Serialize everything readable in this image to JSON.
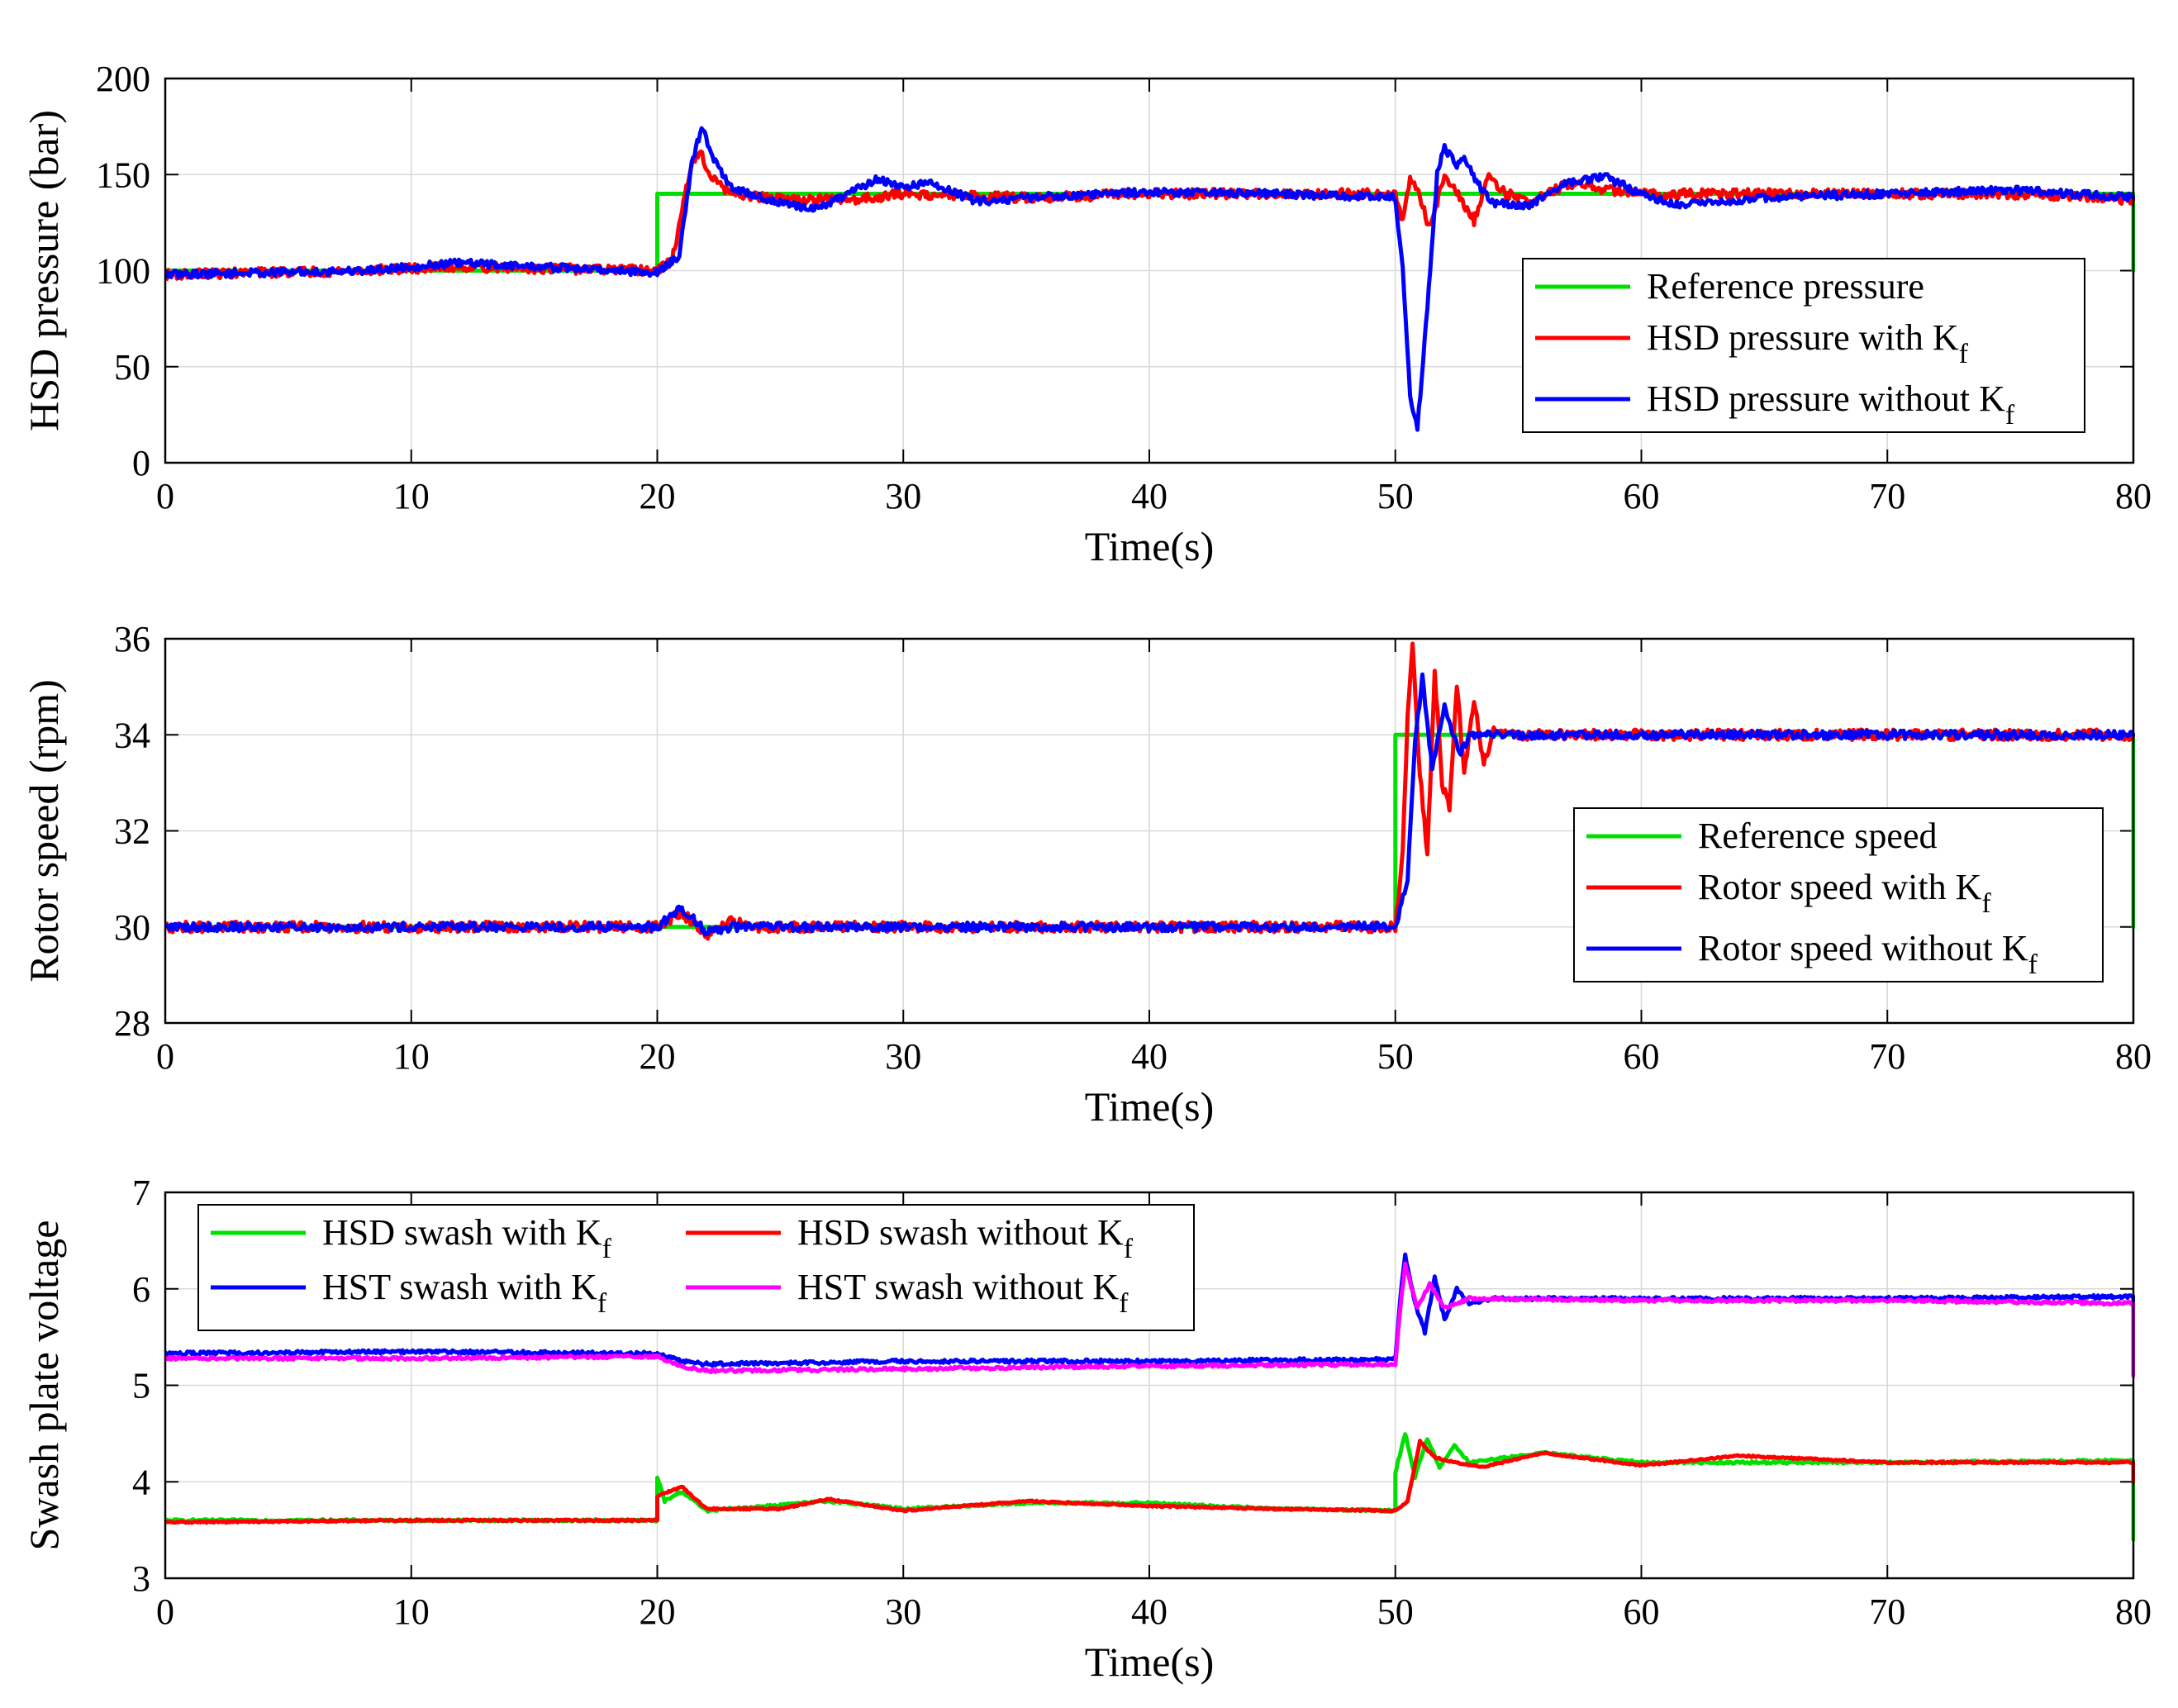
{
  "chart_data": [
    {
      "type": "line",
      "id": "pressure",
      "title": "",
      "xlabel": "Time(s)",
      "ylabel": "HSD pressure (bar)",
      "xlim": [
        0,
        80
      ],
      "ylim": [
        0,
        200
      ],
      "xticks": [
        "0",
        "10",
        "20",
        "30",
        "40",
        "50",
        "60",
        "70",
        "80"
      ],
      "yticks": [
        "0",
        "50",
        "100",
        "150",
        "200"
      ],
      "grid": true,
      "legend_position": "right",
      "series": [
        {
          "name": "Reference pressure",
          "base": "",
          "sub": "",
          "color": "#00e000",
          "noise": 0,
          "points": [
            [
              0,
              100
            ],
            [
              20,
              100
            ],
            [
              20,
              140
            ],
            [
              80,
              140
            ],
            [
              80,
              100
            ]
          ]
        },
        {
          "name": "HSD pressure with K",
          "base": "HSD pressure with K",
          "sub": "f",
          "color": "#ff0000",
          "noise": 2.5,
          "points": [
            [
              0,
              98
            ],
            [
              8,
              100
            ],
            [
              12,
              102
            ],
            [
              20,
              100
            ],
            [
              20.6,
              105
            ],
            [
              21.3,
              150
            ],
            [
              21.7,
              163
            ],
            [
              22.2,
              148
            ],
            [
              23,
              140
            ],
            [
              25,
              137
            ],
            [
              28,
              137
            ],
            [
              30,
              140
            ],
            [
              35,
              138
            ],
            [
              40,
              140
            ],
            [
              45,
              140
            ],
            [
              50,
              140
            ],
            [
              50.3,
              125
            ],
            [
              50.6,
              148
            ],
            [
              51,
              138
            ],
            [
              51.4,
              122
            ],
            [
              52,
              150
            ],
            [
              52.5,
              140
            ],
            [
              53.2,
              126
            ],
            [
              53.8,
              150
            ],
            [
              54.5,
              140
            ],
            [
              55.5,
              136
            ],
            [
              57,
              145
            ],
            [
              60,
              140
            ],
            [
              65,
              140
            ],
            [
              70,
              140
            ],
            [
              75,
              140
            ],
            [
              80,
              137
            ]
          ]
        },
        {
          "name": "HSD pressure without K",
          "base": "HSD pressure without K",
          "sub": "f",
          "color": "#0000ff",
          "noise": 2.0,
          "points": [
            [
              0,
              98
            ],
            [
              8,
              100
            ],
            [
              12,
              104
            ],
            [
              20,
              99
            ],
            [
              20.9,
              108
            ],
            [
              21.4,
              155
            ],
            [
              21.8,
              175
            ],
            [
              22.3,
              158
            ],
            [
              23,
              143
            ],
            [
              25,
              135
            ],
            [
              26.5,
              132
            ],
            [
              29,
              148
            ],
            [
              30,
              143
            ],
            [
              31,
              146
            ],
            [
              33,
              136
            ],
            [
              35,
              138
            ],
            [
              38,
              140
            ],
            [
              40,
              141
            ],
            [
              45,
              140
            ],
            [
              50,
              138
            ],
            [
              50.3,
              100
            ],
            [
              50.6,
              35
            ],
            [
              50.9,
              18
            ],
            [
              51.3,
              80
            ],
            [
              51.7,
              150
            ],
            [
              52,
              164
            ],
            [
              52.5,
              155
            ],
            [
              52.8,
              160
            ],
            [
              53.3,
              146
            ],
            [
              54,
              135
            ],
            [
              55.5,
              134
            ],
            [
              57,
              146
            ],
            [
              58.5,
              149
            ],
            [
              60,
              140
            ],
            [
              61.5,
              134
            ],
            [
              65,
              138
            ],
            [
              70,
              140
            ],
            [
              75,
              142
            ],
            [
              80,
              138
            ]
          ]
        }
      ]
    },
    {
      "type": "line",
      "id": "rotor",
      "title": "",
      "xlabel": "Time(s)",
      "ylabel": "Rotor speed (rpm)",
      "xlim": [
        0,
        80
      ],
      "ylim": [
        28,
        36
      ],
      "xticks": [
        "0",
        "10",
        "20",
        "30",
        "40",
        "50",
        "60",
        "70",
        "80"
      ],
      "yticks": [
        "28",
        "30",
        "32",
        "34",
        "36"
      ],
      "grid": true,
      "legend_position": "right",
      "series": [
        {
          "name": "Reference speed",
          "base": "",
          "sub": "",
          "color": "#00e000",
          "noise": 0,
          "points": [
            [
              0,
              30
            ],
            [
              50,
              30
            ],
            [
              50,
              34
            ],
            [
              80,
              34
            ],
            [
              80,
              30
            ]
          ]
        },
        {
          "name": "Rotor speed with K",
          "base": "Rotor speed with K",
          "sub": "f",
          "color": "#ff0000",
          "noise": 0.11,
          "points": [
            [
              0,
              30
            ],
            [
              20,
              30
            ],
            [
              21,
              30.3
            ],
            [
              22,
              29.8
            ],
            [
              23,
              30.1
            ],
            [
              24,
              30
            ],
            [
              50,
              30
            ],
            [
              50.3,
              31.5
            ],
            [
              50.5,
              34.5
            ],
            [
              50.7,
              35.8
            ],
            [
              51,
              33.2
            ],
            [
              51.3,
              31.5
            ],
            [
              51.6,
              35.3
            ],
            [
              51.9,
              33
            ],
            [
              52.2,
              32.5
            ],
            [
              52.5,
              35
            ],
            [
              52.8,
              33.2
            ],
            [
              53.2,
              34.7
            ],
            [
              53.6,
              33.4
            ],
            [
              54,
              34.1
            ],
            [
              55,
              34
            ],
            [
              60,
              34
            ],
            [
              70,
              34
            ],
            [
              80,
              34
            ]
          ]
        },
        {
          "name": "Rotor speed without K",
          "base": "Rotor speed without K",
          "sub": "f",
          "color": "#0000ff",
          "noise": 0.09,
          "points": [
            [
              0,
              30
            ],
            [
              20,
              30
            ],
            [
              21,
              30.4
            ],
            [
              22,
              29.9
            ],
            [
              23,
              30
            ],
            [
              50,
              30
            ],
            [
              50.5,
              31
            ],
            [
              50.8,
              33.8
            ],
            [
              51.1,
              35.2
            ],
            [
              51.5,
              33.3
            ],
            [
              52,
              34.6
            ],
            [
              52.6,
              33.6
            ],
            [
              53.1,
              34
            ],
            [
              55,
              34
            ],
            [
              60,
              34
            ],
            [
              70,
              34
            ],
            [
              80,
              34
            ]
          ]
        }
      ]
    },
    {
      "type": "line",
      "id": "swash",
      "title": "",
      "xlabel": "Time(s)",
      "ylabel": "Swash plate voltage",
      "xlim": [
        0,
        80
      ],
      "ylim": [
        3,
        7
      ],
      "xticks": [
        "0",
        "10",
        "20",
        "30",
        "40",
        "50",
        "60",
        "70",
        "80"
      ],
      "yticks": [
        "3",
        "4",
        "5",
        "6",
        "7"
      ],
      "grid": true,
      "legend_position": "top-left",
      "series": [
        {
          "name": "HSD swash with K",
          "base": "HSD swash with K",
          "sub": "f",
          "color": "#00e000",
          "noise": 0.012,
          "points": [
            [
              0,
              3.6
            ],
            [
              20,
              3.6
            ],
            [
              20,
              4.05
            ],
            [
              20.3,
              3.8
            ],
            [
              21,
              3.9
            ],
            [
              22,
              3.7
            ],
            [
              27,
              3.8
            ],
            [
              30,
              3.72
            ],
            [
              35,
              3.78
            ],
            [
              40,
              3.78
            ],
            [
              45,
              3.72
            ],
            [
              50,
              3.7
            ],
            [
              50,
              4.1
            ],
            [
              50.4,
              4.5
            ],
            [
              50.8,
              4.05
            ],
            [
              51.3,
              4.45
            ],
            [
              51.8,
              4.15
            ],
            [
              52.4,
              4.38
            ],
            [
              53,
              4.2
            ],
            [
              56,
              4.3
            ],
            [
              60,
              4.2
            ],
            [
              70,
              4.2
            ],
            [
              80,
              4.22
            ],
            [
              80,
              3.4
            ]
          ]
        },
        {
          "name": "HSD swash without K",
          "base": "HSD swash without K",
          "sub": "f",
          "color": "#ff0000",
          "noise": 0.008,
          "points": [
            [
              0,
              3.58
            ],
            [
              10,
              3.6
            ],
            [
              20,
              3.6
            ],
            [
              20,
              3.85
            ],
            [
              21,
              3.95
            ],
            [
              22,
              3.72
            ],
            [
              25,
              3.72
            ],
            [
              27,
              3.82
            ],
            [
              30,
              3.7
            ],
            [
              35,
              3.8
            ],
            [
              40,
              3.75
            ],
            [
              45,
              3.72
            ],
            [
              50,
              3.7
            ],
            [
              50.5,
              3.8
            ],
            [
              51,
              4.42
            ],
            [
              51.6,
              4.25
            ],
            [
              52.5,
              4.2
            ],
            [
              53.5,
              4.15
            ],
            [
              56,
              4.3
            ],
            [
              60,
              4.17
            ],
            [
              64,
              4.27
            ],
            [
              70,
              4.2
            ],
            [
              80,
              4.2
            ],
            [
              80,
              4.0
            ]
          ]
        },
        {
          "name": "HST swash with K",
          "base": "HST swash with K",
          "sub": "f",
          "color": "#0000ff",
          "noise": 0.018,
          "points": [
            [
              0,
              5.33
            ],
            [
              10,
              5.35
            ],
            [
              20,
              5.33
            ],
            [
              21,
              5.25
            ],
            [
              22,
              5.22
            ],
            [
              30,
              5.25
            ],
            [
              40,
              5.25
            ],
            [
              50,
              5.27
            ],
            [
              50.2,
              5.9
            ],
            [
              50.4,
              6.35
            ],
            [
              50.8,
              5.85
            ],
            [
              51.2,
              5.55
            ],
            [
              51.6,
              6.12
            ],
            [
              52,
              5.68
            ],
            [
              52.5,
              6.0
            ],
            [
              53,
              5.85
            ],
            [
              54,
              5.9
            ],
            [
              60,
              5.9
            ],
            [
              70,
              5.9
            ],
            [
              80,
              5.92
            ],
            [
              80,
              5.3
            ]
          ]
        },
        {
          "name": "HST swash without K",
          "base": "HST swash without K",
          "sub": "f",
          "color": "#ff00ff",
          "noise": 0.016,
          "points": [
            [
              0,
              5.28
            ],
            [
              10,
              5.28
            ],
            [
              20,
              5.3
            ],
            [
              21,
              5.2
            ],
            [
              22,
              5.15
            ],
            [
              30,
              5.17
            ],
            [
              40,
              5.2
            ],
            [
              50,
              5.22
            ],
            [
              50.2,
              5.8
            ],
            [
              50.4,
              6.25
            ],
            [
              50.9,
              5.8
            ],
            [
              51.4,
              6.05
            ],
            [
              52,
              5.8
            ],
            [
              53,
              5.9
            ],
            [
              60,
              5.88
            ],
            [
              70,
              5.88
            ],
            [
              80,
              5.85
            ],
            [
              80,
              5.1
            ]
          ]
        }
      ]
    }
  ]
}
